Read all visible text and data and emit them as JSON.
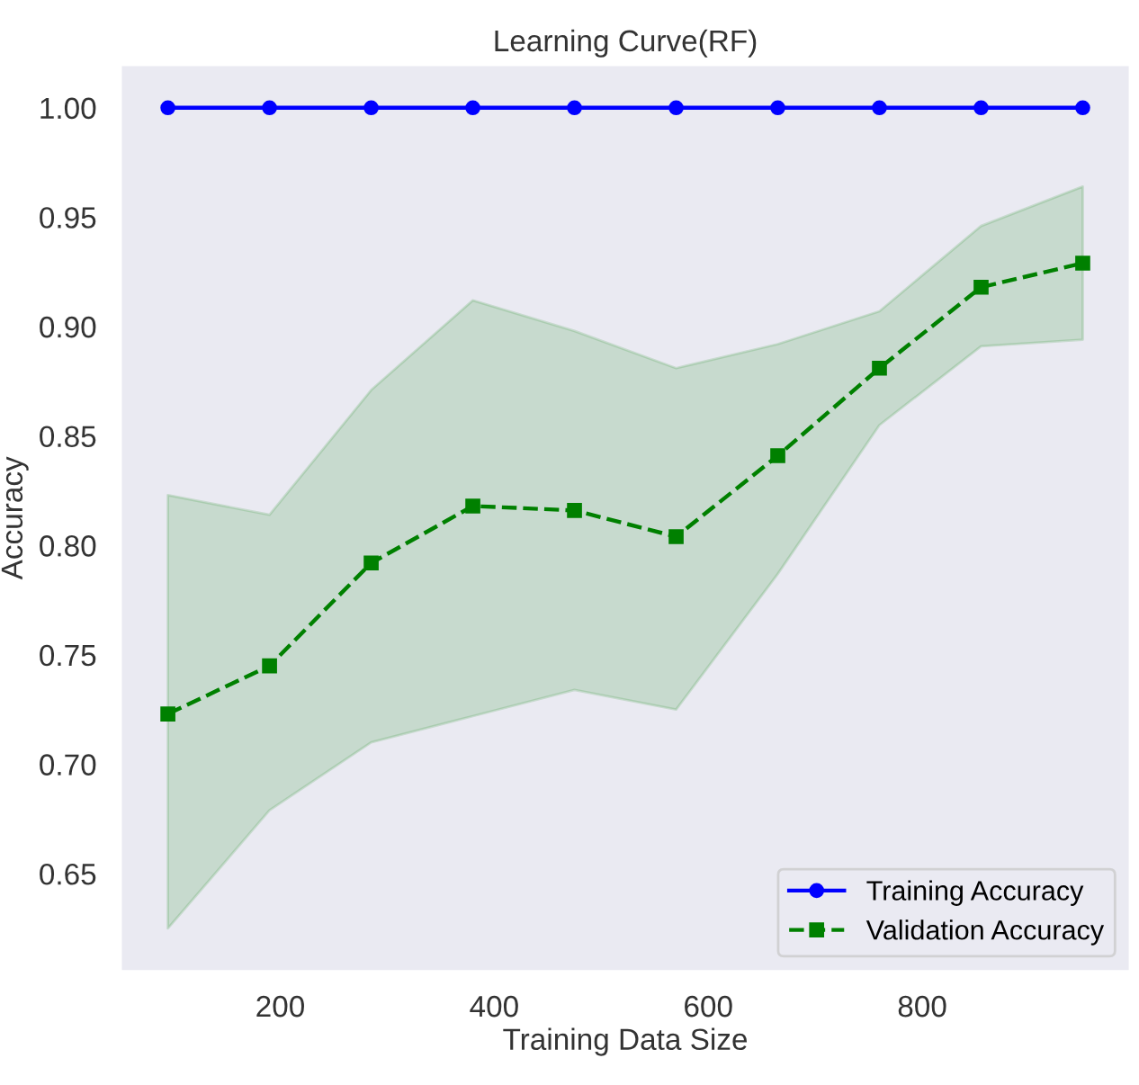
{
  "chart_data": {
    "type": "line",
    "title": "Learning Curve(RF)",
    "xlabel": "Training Data Size",
    "ylabel": "Accuracy",
    "x": [
      95,
      190,
      285,
      380,
      475,
      570,
      665,
      760,
      855,
      950
    ],
    "series": [
      {
        "name": "Training Accuracy",
        "color": "#0000ff",
        "marker": "circle",
        "line_style": "solid",
        "values": [
          1.0,
          1.0,
          1.0,
          1.0,
          1.0,
          1.0,
          1.0,
          1.0,
          1.0,
          1.0
        ]
      },
      {
        "name": "Validation Accuracy",
        "color": "#008000",
        "marker": "square",
        "line_style": "dashed",
        "values": [
          0.723,
          0.745,
          0.792,
          0.818,
          0.816,
          0.804,
          0.841,
          0.881,
          0.918,
          0.929
        ],
        "lower": [
          0.625,
          0.679,
          0.71,
          0.722,
          0.734,
          0.725,
          0.787,
          0.855,
          0.891,
          0.894
        ],
        "upper": [
          0.823,
          0.814,
          0.871,
          0.912,
          0.898,
          0.881,
          0.892,
          0.907,
          0.946,
          0.964
        ]
      }
    ],
    "xlim": [
      52,
      993
    ],
    "ylim": [
      0.606,
      1.019
    ],
    "xticks": [
      200,
      400,
      600,
      800
    ],
    "yticks": [
      {
        "value": 0.65,
        "label": "0.65"
      },
      {
        "value": 0.7,
        "label": "0.70"
      },
      {
        "value": 0.75,
        "label": "0.75"
      },
      {
        "value": 0.8,
        "label": "0.80"
      },
      {
        "value": 0.85,
        "label": "0.85"
      },
      {
        "value": 0.9,
        "label": "0.90"
      },
      {
        "value": 0.95,
        "label": "0.95"
      },
      {
        "value": 1.0,
        "label": "1.00"
      }
    ],
    "grid": false,
    "legend": "bottom right"
  }
}
